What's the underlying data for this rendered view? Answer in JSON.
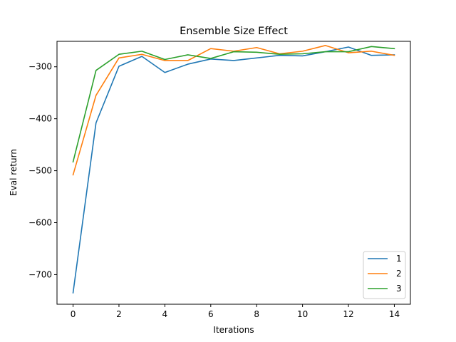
{
  "chart_data": {
    "type": "line",
    "title": "Ensemble Size Effect",
    "xlabel": "Iterations",
    "ylabel": "Eval return",
    "xlim": [
      -0.7,
      14.7
    ],
    "ylim": [
      -757,
      -251
    ],
    "xticks": [
      0,
      2,
      4,
      6,
      8,
      10,
      12,
      14
    ],
    "yticks": [
      -700,
      -600,
      -500,
      -400,
      -300
    ],
    "ytick_labels": [
      "−700",
      "−600",
      "−500",
      "−400",
      "−300"
    ],
    "grid": false,
    "legend_position": "lower-right",
    "x": [
      0,
      1,
      2,
      3,
      4,
      5,
      6,
      7,
      8,
      9,
      10,
      11,
      12,
      13,
      14
    ],
    "series": [
      {
        "name": "1",
        "color": "#1f77b4",
        "values": [
          -735,
          -408,
          -299,
          -280,
          -311,
          -295,
          -285,
          -288,
          -283,
          -278,
          -279,
          -271,
          -262,
          -278,
          -277
        ]
      },
      {
        "name": "2",
        "color": "#ff7f0e",
        "values": [
          -508,
          -355,
          -283,
          -276,
          -288,
          -288,
          -265,
          -270,
          -263,
          -275,
          -270,
          -259,
          -273,
          -270,
          -278
        ]
      },
      {
        "name": "3",
        "color": "#2ca02c",
        "values": [
          -483,
          -307,
          -276,
          -270,
          -286,
          -277,
          -284,
          -271,
          -272,
          -276,
          -275,
          -271,
          -271,
          -261,
          -265
        ]
      }
    ]
  }
}
